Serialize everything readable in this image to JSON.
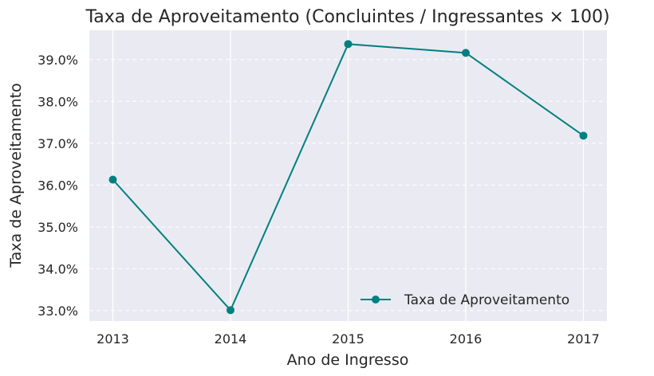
{
  "chart_data": {
    "type": "line",
    "title": "Taxa de Aproveitamento (Concluintes / Ingressantes × 100)",
    "xlabel": "Ano de Ingresso",
    "ylabel": "Taxa de Aproveitamento",
    "x": [
      "2013",
      "2014",
      "2015",
      "2016",
      "2017"
    ],
    "series": [
      {
        "name": "Taxa de Aproveitamento",
        "values": [
          36.13,
          33.01,
          39.37,
          39.16,
          37.18
        ],
        "color": "#008080",
        "marker": "circle"
      }
    ],
    "ylim": [
      32.75,
      39.7
    ],
    "yticks": [
      33,
      34,
      35,
      36,
      37,
      38,
      39
    ],
    "ytick_labels": [
      "33.0%",
      "34.0%",
      "35.0%",
      "36.0%",
      "37.0%",
      "38.0%",
      "39.0%"
    ],
    "grid": true,
    "y_grid_style": "dashed",
    "legend_position": "bottom-right",
    "background": "#eaeaf2"
  }
}
